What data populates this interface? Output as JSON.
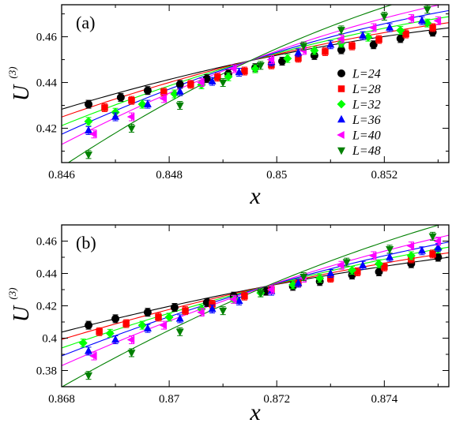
{
  "chart_data": [
    {
      "type": "scatter",
      "panel_label": "(a)",
      "xlabel": "x",
      "ylabel": "U",
      "ylabel_superscript": "(3)",
      "xlim": [
        0.846,
        0.8532
      ],
      "ylim": [
        0.405,
        0.474
      ],
      "xticks": [
        0.846,
        0.848,
        0.85,
        0.852
      ],
      "xtick_labels": [
        "0.846",
        "0.848",
        "0.85",
        "0.852"
      ],
      "yticks": [
        0.42,
        0.44,
        0.46
      ],
      "ytick_labels": [
        "0.42",
        "0.44",
        "0.46"
      ],
      "grid": false,
      "legend": "inside right",
      "crossing": [
        0.8495,
        0.4495
      ],
      "series": [
        {
          "name": "L=24",
          "color": "#000000",
          "marker": "circle",
          "slope": 5.0,
          "curv": -300,
          "x": [
            0.8465,
            0.8471,
            0.8476,
            0.8482,
            0.8487,
            0.8491,
            0.8496,
            0.8501,
            0.8507,
            0.8512,
            0.8518,
            0.8523,
            0.8529
          ],
          "y": [
            0.4305,
            0.4335,
            0.4365,
            0.4392,
            0.4417,
            0.4438,
            0.4465,
            0.4493,
            0.4518,
            0.4543,
            0.4565,
            0.4592,
            0.462
          ]
        },
        {
          "name": "L=28",
          "color": "#ff0000",
          "marker": "square",
          "slope": 5.8,
          "curv": -350,
          "x": [
            0.8468,
            0.8473,
            0.8479,
            0.8484,
            0.8489,
            0.8494,
            0.8499,
            0.8504,
            0.8509,
            0.8514,
            0.8519,
            0.8524,
            0.8529
          ],
          "y": [
            0.429,
            0.4322,
            0.4358,
            0.4392,
            0.4423,
            0.445,
            0.4477,
            0.4506,
            0.4535,
            0.456,
            0.4588,
            0.4612,
            0.464
          ]
        },
        {
          "name": "L=32",
          "color": "#00ff00",
          "marker": "diamond",
          "slope": 6.7,
          "curv": -400,
          "x": [
            0.8465,
            0.847,
            0.8475,
            0.8481,
            0.8486,
            0.8491,
            0.8496,
            0.8502,
            0.8507,
            0.8512,
            0.8517,
            0.8523,
            0.8528
          ],
          "y": [
            0.423,
            0.427,
            0.4305,
            0.435,
            0.439,
            0.4425,
            0.446,
            0.4505,
            0.454,
            0.4572,
            0.4598,
            0.4628,
            0.466
          ]
        },
        {
          "name": "L=36",
          "color": "#0000ff",
          "marker": "triangle-up",
          "slope": 7.6,
          "curv": -450,
          "x": [
            0.8465,
            0.847,
            0.8476,
            0.8482,
            0.8488,
            0.8493,
            0.8499,
            0.8504,
            0.851,
            0.8516,
            0.8521,
            0.8527
          ],
          "y": [
            0.419,
            0.425,
            0.4305,
            0.436,
            0.4405,
            0.4445,
            0.449,
            0.453,
            0.4565,
            0.4605,
            0.464,
            0.467
          ]
        },
        {
          "name": "L=40",
          "color": "#ff00ff",
          "marker": "triangle-left",
          "slope": 8.7,
          "curv": -500,
          "x": [
            0.8466,
            0.8473,
            0.8479,
            0.8486,
            0.8492,
            0.8499,
            0.8505,
            0.8512,
            0.8518,
            0.8525,
            0.853
          ],
          "y": [
            0.4175,
            0.425,
            0.433,
            0.44,
            0.446,
            0.45,
            0.454,
            0.459,
            0.464,
            0.468,
            0.467
          ]
        },
        {
          "name": "L=48",
          "color": "#008000",
          "marker": "triangle-down",
          "slope": 11.0,
          "curv": -650,
          "x": [
            0.8465,
            0.8473,
            0.8482,
            0.849,
            0.8497,
            0.8505,
            0.8512,
            0.852,
            0.8528
          ],
          "y": [
            0.4085,
            0.42,
            0.43,
            0.44,
            0.4475,
            0.456,
            0.463,
            0.469,
            0.472
          ]
        }
      ]
    },
    {
      "type": "scatter",
      "panel_label": "(b)",
      "xlabel": "x",
      "ylabel": "U",
      "ylabel_superscript": "(3)",
      "xlim": [
        0.868,
        0.8752
      ],
      "ylim": [
        0.37,
        0.47
      ],
      "xticks": [
        0.868,
        0.87,
        0.872,
        0.874
      ],
      "xtick_labels": [
        "0.868",
        "0.87",
        "0.872",
        "0.874"
      ],
      "yticks": [
        0.38,
        0.4,
        0.42,
        0.44,
        0.46
      ],
      "ytick_labels": [
        "0.38",
        "0.4",
        "0.42",
        "0.44",
        "0.46"
      ],
      "grid": false,
      "legend": "none",
      "crossing": [
        0.8718,
        0.432
      ],
      "series": [
        {
          "name": "L=24",
          "color": "#000000",
          "marker": "circle",
          "slope": 6.3,
          "curv": -300,
          "x": [
            0.8685,
            0.869,
            0.8696,
            0.8701,
            0.8707,
            0.8712,
            0.8718,
            0.8723,
            0.8728,
            0.8734,
            0.8739,
            0.8745,
            0.875
          ],
          "y": [
            0.408,
            0.412,
            0.416,
            0.419,
            0.422,
            0.426,
            0.429,
            0.432,
            0.435,
            0.439,
            0.441,
            0.446,
            0.45
          ]
        },
        {
          "name": "L=28",
          "color": "#ff0000",
          "marker": "square",
          "slope": 7.3,
          "curv": -350,
          "x": [
            0.8687,
            0.8692,
            0.8698,
            0.8703,
            0.8708,
            0.8714,
            0.8719,
            0.8724,
            0.873,
            0.8735,
            0.874,
            0.8745,
            0.8749
          ],
          "y": [
            0.404,
            0.409,
            0.413,
            0.417,
            0.421,
            0.426,
            0.43,
            0.434,
            0.437,
            0.441,
            0.444,
            0.449,
            0.452
          ]
        },
        {
          "name": "L=32",
          "color": "#00ff00",
          "marker": "diamond",
          "slope": 8.5,
          "curv": -400,
          "x": [
            0.8684,
            0.8689,
            0.8695,
            0.87,
            0.8706,
            0.8712,
            0.8717,
            0.8723,
            0.8728,
            0.8734,
            0.8739,
            0.8745,
            0.875
          ],
          "y": [
            0.397,
            0.403,
            0.408,
            0.413,
            0.418,
            0.424,
            0.428,
            0.433,
            0.437,
            0.442,
            0.446,
            0.451,
            0.455
          ]
        },
        {
          "name": "L=36",
          "color": "#0000ff",
          "marker": "triangle-up",
          "slope": 9.6,
          "curv": -450,
          "x": [
            0.8685,
            0.869,
            0.8696,
            0.8702,
            0.8708,
            0.8713,
            0.8719,
            0.8724,
            0.873,
            0.8736,
            0.8741,
            0.8747,
            0.875
          ],
          "y": [
            0.392,
            0.399,
            0.406,
            0.412,
            0.418,
            0.423,
            0.429,
            0.434,
            0.44,
            0.445,
            0.45,
            0.454,
            0.456
          ]
        },
        {
          "name": "L=40",
          "color": "#ff00ff",
          "marker": "triangle-left",
          "slope": 11.0,
          "curv": -500,
          "x": [
            0.8686,
            0.8693,
            0.8699,
            0.8706,
            0.8712,
            0.8719,
            0.8725,
            0.8732,
            0.8738,
            0.8745,
            0.875
          ],
          "y": [
            0.389,
            0.399,
            0.408,
            0.416,
            0.424,
            0.43,
            0.437,
            0.445,
            0.451,
            0.457,
            0.46
          ]
        },
        {
          "name": "L=48",
          "color": "#008000",
          "marker": "triangle-down",
          "slope": 13.9,
          "curv": -650,
          "x": [
            0.8685,
            0.8693,
            0.8702,
            0.871,
            0.8717,
            0.8725,
            0.8733,
            0.8741,
            0.8749
          ],
          "y": [
            0.377,
            0.391,
            0.404,
            0.417,
            0.428,
            0.438,
            0.447,
            0.455,
            0.463
          ]
        }
      ]
    }
  ]
}
